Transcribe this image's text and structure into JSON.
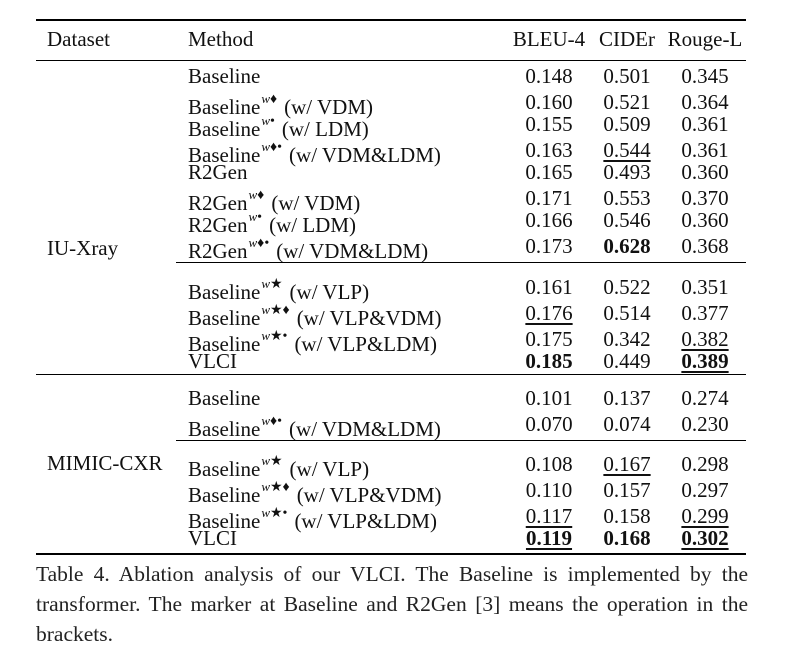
{
  "header": {
    "dataset": "Dataset",
    "method": "Method",
    "bleu": "BLEU-4",
    "cider": "CIDEr",
    "rouge": "Rouge-L"
  },
  "datasets": {
    "iu": "IU-Xray",
    "mimic": "MIMIC-CXR"
  },
  "iu_group1": [
    {
      "base": "Baseline",
      "marker": "",
      "note": "",
      "bleu": "0.148",
      "cider": "0.501",
      "rouge": "0.345",
      "fmt": [
        "",
        "",
        ""
      ]
    },
    {
      "base": "Baseline",
      "marker": "w♦",
      "note": "(w/ VDM)",
      "bleu": "0.160",
      "cider": "0.521",
      "rouge": "0.364",
      "fmt": [
        "",
        "",
        ""
      ]
    },
    {
      "base": "Baseline",
      "marker": "w•",
      "note": "(w/ LDM)",
      "bleu": "0.155",
      "cider": "0.509",
      "rouge": "0.361",
      "fmt": [
        "",
        "",
        ""
      ]
    },
    {
      "base": "Baseline",
      "marker": "w♦•",
      "note": "(w/ VDM&LDM)",
      "bleu": "0.163",
      "cider": "0.544",
      "rouge": "0.361",
      "fmt": [
        "",
        "ul",
        ""
      ]
    },
    {
      "base": "R2Gen",
      "marker": "",
      "note": "",
      "bleu": "0.165",
      "cider": "0.493",
      "rouge": "0.360",
      "fmt": [
        "",
        "",
        ""
      ]
    },
    {
      "base": "R2Gen",
      "marker": "w♦",
      "note": "(w/ VDM)",
      "bleu": "0.171",
      "cider": "0.553",
      "rouge": "0.370",
      "fmt": [
        "",
        "",
        ""
      ]
    },
    {
      "base": "R2Gen",
      "marker": "w•",
      "note": "(w/ LDM)",
      "bleu": "0.166",
      "cider": "0.546",
      "rouge": "0.360",
      "fmt": [
        "",
        "",
        ""
      ]
    },
    {
      "base": "R2Gen",
      "marker": "w♦•",
      "note": "(w/ VDM&LDM)",
      "bleu": "0.173",
      "cider": "0.628",
      "rouge": "0.368",
      "fmt": [
        "",
        "bold",
        ""
      ]
    }
  ],
  "iu_group2": [
    {
      "base": "Baseline",
      "marker": "w★",
      "note": "(w/ VLP)",
      "bleu": "0.161",
      "cider": "0.522",
      "rouge": "0.351",
      "fmt": [
        "",
        "",
        ""
      ]
    },
    {
      "base": "Baseline",
      "marker": "w★♦",
      "note": "(w/ VLP&VDM)",
      "bleu": "0.176",
      "cider": "0.514",
      "rouge": "0.377",
      "fmt": [
        "ul",
        "",
        ""
      ]
    },
    {
      "base": "Baseline",
      "marker": "w★•",
      "note": "(w/ VLP&LDM)",
      "bleu": "0.175",
      "cider": "0.342",
      "rouge": "0.382",
      "fmt": [
        "",
        "",
        "ul"
      ]
    },
    {
      "base": "VLCI",
      "marker": "",
      "note": "",
      "bleu": "0.185",
      "cider": "0.449",
      "rouge": "0.389",
      "fmt": [
        "bold",
        "",
        "bold ul"
      ]
    }
  ],
  "mimic_group1": [
    {
      "base": "Baseline",
      "marker": "",
      "note": "",
      "bleu": "0.101",
      "cider": "0.137",
      "rouge": "0.274",
      "fmt": [
        "",
        "",
        ""
      ]
    },
    {
      "base": "Baseline",
      "marker": "w♦•",
      "note": "(w/ VDM&LDM)",
      "bleu": "0.070",
      "cider": "0.074",
      "rouge": "0.230",
      "fmt": [
        "",
        "",
        ""
      ]
    }
  ],
  "mimic_group2": [
    {
      "base": "Baseline",
      "marker": "w★",
      "note": "(w/ VLP)",
      "bleu": "0.108",
      "cider": "0.167",
      "rouge": "0.298",
      "fmt": [
        "",
        "ul",
        ""
      ]
    },
    {
      "base": "Baseline",
      "marker": "w★♦",
      "note": "(w/ VLP&VDM)",
      "bleu": "0.110",
      "cider": "0.157",
      "rouge": "0.297",
      "fmt": [
        "",
        "",
        ""
      ]
    },
    {
      "base": "Baseline",
      "marker": "w★•",
      "note": "(w/ VLP&LDM)",
      "bleu": "0.117",
      "cider": "0.158",
      "rouge": "0.299",
      "fmt": [
        "ul",
        "",
        "ul"
      ]
    },
    {
      "base": "VLCI",
      "marker": "",
      "note": "",
      "bleu": "0.119",
      "cider": "0.168",
      "rouge": "0.302",
      "fmt": [
        "bold ul",
        "bold",
        "bold ul"
      ]
    }
  ],
  "caption": "Table 4. Ablation analysis of our VLCI. The Baseline is implemented by the transformer. The marker at Baseline and R2Gen [3] means the operation in the brackets."
}
